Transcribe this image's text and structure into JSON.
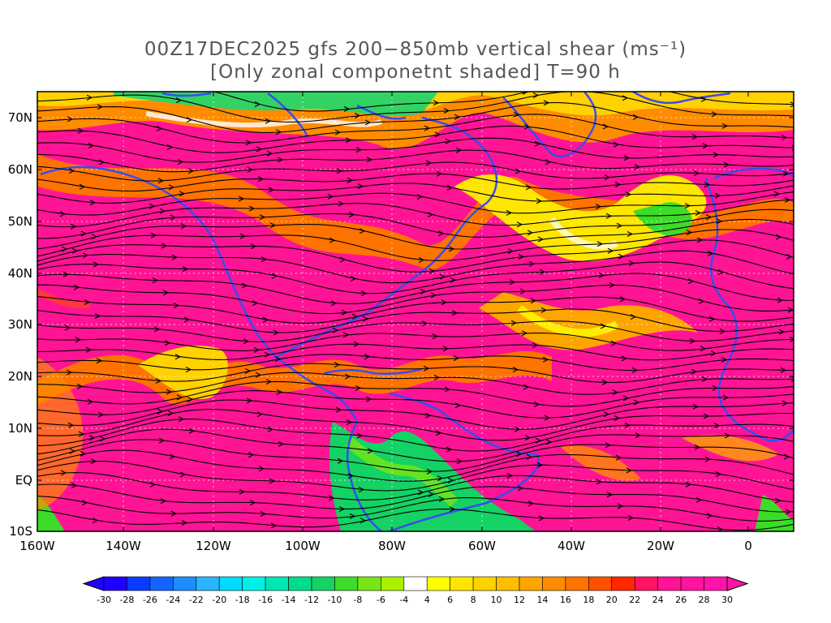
{
  "title": {
    "line1": "00Z17DEC2025 gfs 200−850mb vertical shear (ms⁻¹)",
    "line2": "[Only zonal componetnt shaded] T=90 h"
  },
  "map": {
    "lat_labels": [
      "70N",
      "60N",
      "50N",
      "40N",
      "30N",
      "20N",
      "10N",
      "EQ",
      "10S"
    ],
    "lon_labels": [
      "160W",
      "140W",
      "120W",
      "100W",
      "80W",
      "60W",
      "40W",
      "20W",
      "0"
    ],
    "coastline_color": "#3a4cf0",
    "streamline_color": "#000000",
    "contour_color": "#9a1aa8"
  },
  "colorbar": {
    "labels": [
      "-30",
      "-28",
      "-26",
      "-24",
      "-22",
      "-20",
      "-18",
      "-16",
      "-14",
      "-12",
      "-10",
      "-8",
      "-6",
      "-4",
      "4",
      "6",
      "8",
      "10",
      "12",
      "14",
      "16",
      "18",
      "20",
      "22",
      "24",
      "26",
      "28",
      "30"
    ],
    "colors": [
      "#1e00ff",
      "#0a3cff",
      "#1464ff",
      "#1e8cff",
      "#28b4ff",
      "#00dcff",
      "#00f0e6",
      "#00e6b4",
      "#00dc8c",
      "#14d264",
      "#3cdc28",
      "#78e614",
      "#aaf000",
      "#ffffff",
      "#ffff00",
      "#ffe600",
      "#ffd200",
      "#ffbe00",
      "#ffa500",
      "#ff8c00",
      "#ff7300",
      "#ff5000",
      "#ff2800",
      "#ff1464",
      "#ff1496",
      "#ff14a0",
      "#ff14aa"
    ]
  }
}
